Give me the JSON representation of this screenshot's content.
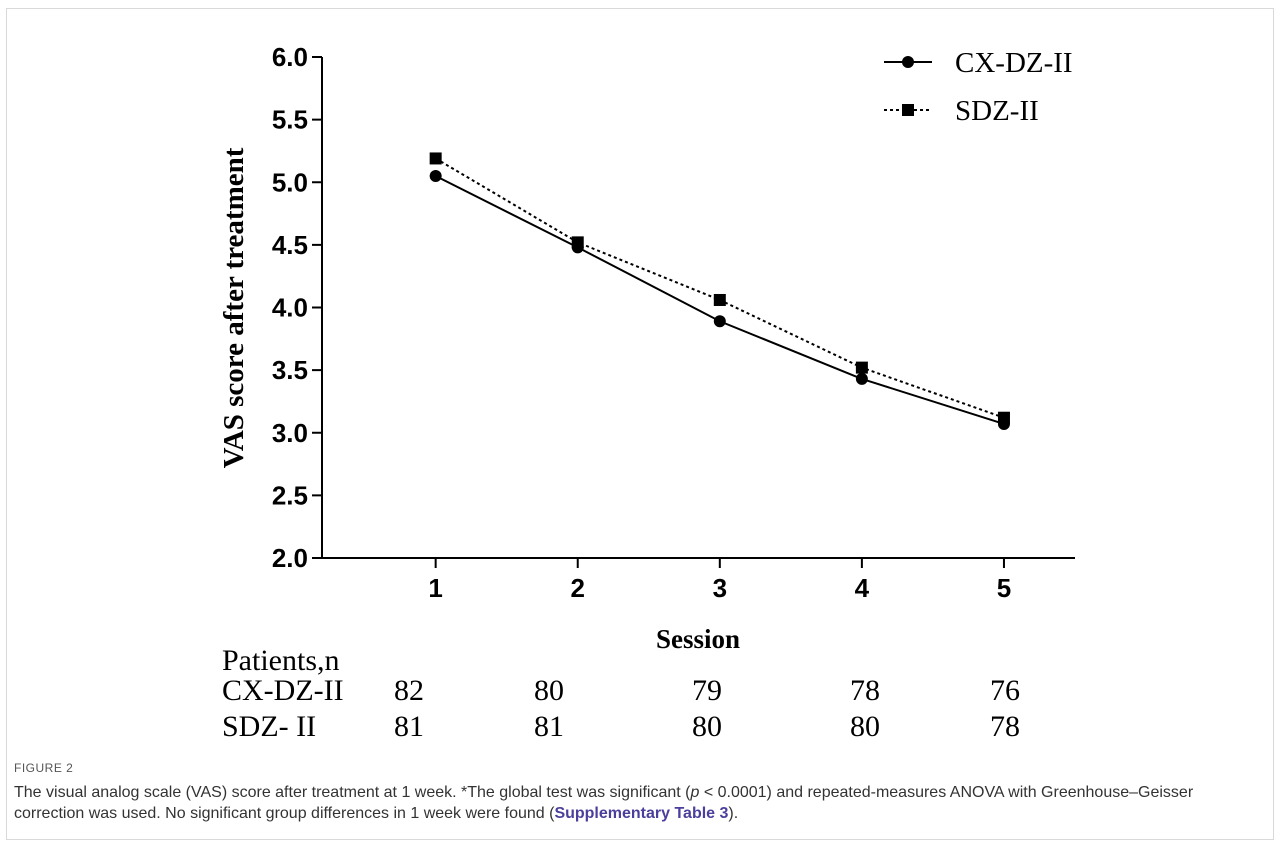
{
  "chart_data": {
    "type": "line",
    "ylabel": "VAS score after treatment",
    "xlabel": "Session",
    "ylim": [
      2.0,
      6.0
    ],
    "yticks": [
      "2.0",
      "2.5",
      "3.0",
      "3.5",
      "4.0",
      "4.5",
      "5.0",
      "5.5",
      "6.0"
    ],
    "xlim": [
      0.2,
      5.5
    ],
    "categories": [
      "1",
      "2",
      "3",
      "4",
      "5"
    ],
    "legend_position": "top-right",
    "series": [
      {
        "name": "CX-DZ-II",
        "values": [
          5.05,
          4.48,
          3.89,
          3.43,
          3.07
        ],
        "style": "solid",
        "marker": "circle"
      },
      {
        "name": "SDZ-II",
        "values": [
          5.19,
          4.52,
          4.06,
          3.52,
          3.12
        ],
        "style": "dotted",
        "marker": "square"
      }
    ]
  },
  "patients_table": {
    "header": "Patients,n",
    "rows": [
      {
        "label": "CX-DZ-II",
        "values": [
          "82",
          "80",
          "79",
          "78",
          "76"
        ]
      },
      {
        "label": "SDZ- II",
        "values": [
          "81",
          "81",
          "80",
          "80",
          "78"
        ]
      }
    ]
  },
  "figure": {
    "label": "FIGURE 2",
    "caption_a": "The visual analog scale (VAS) score after treatment at 1 week. *The global test was significant (",
    "caption_p": "p",
    "caption_b": " < 0.0001) and repeated-measures ANOVA with Greenhouse–Geisser correction was used. No significant group differences in 1 week were found (",
    "caption_link": "Supplementary Table 3",
    "caption_c": ")."
  },
  "colors": {
    "line": "#000000",
    "caption_link": "#4a3f9c",
    "frame_border": "#d9d9d9"
  }
}
